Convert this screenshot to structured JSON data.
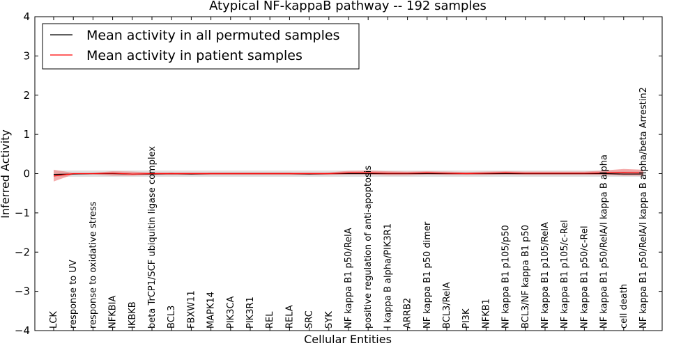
{
  "chart_data": {
    "type": "line",
    "title": "Atypical NF-kappaB pathway -- 192 samples",
    "xlabel": "Cellular Entities",
    "ylabel": "Inferred Activity",
    "ylim": [
      -4,
      4
    ],
    "yticks": [
      "4",
      "3",
      "2",
      "1",
      "0",
      "−1",
      "−2",
      "−3",
      "−4"
    ],
    "categories": [
      "LCK",
      "response to UV",
      "response to oxidative stress",
      "NFKBIA",
      "IKBKB",
      "beta TrCP1/SCF ubiquitin ligase complex",
      "BCL3",
      "FBXW11",
      "MAPK14",
      "PIK3CA",
      "PIK3R1",
      "REL",
      "RELA",
      "SRC",
      "SYK",
      "NF kappa B1 p50/RelA",
      "positive regulation of anti-apoptosis",
      "I kappa B alpha/PIK3R1",
      "ARRB2",
      "NF kappa B1 p50 dimer",
      "BCL3/RelA",
      "PI3K",
      "NFKB1",
      "NF kappa B1 p105/p50",
      "BCL3/NF kappa B1 p50",
      "NF kappa B1 p105/RelA",
      "NF kappa B1 p105/c-Rel",
      "NF kappa B1 p50/c-Rel",
      "NF kappa B1 p50/RelA/I kappa B alpha",
      "cell death",
      "NF kappa B1 p50/RelA/I kappa B alpha/beta Arrestin2"
    ],
    "series": [
      {
        "name": "Mean activity in all permuted samples",
        "color": "#000000",
        "values": [
          -0.02,
          -0.01,
          0,
          0,
          -0.01,
          -0.01,
          0,
          -0.01,
          0,
          0,
          0,
          0,
          0,
          -0.01,
          0,
          0,
          0,
          0,
          0,
          0,
          0,
          0,
          0,
          0,
          0,
          0,
          0,
          0,
          0,
          -0.01,
          -0.01
        ],
        "band_lower": [
          -0.08,
          -0.08,
          -0.08,
          -0.08,
          -0.08,
          -0.08,
          -0.08,
          -0.08,
          -0.08,
          -0.08,
          -0.08,
          -0.08,
          -0.08,
          -0.08,
          -0.08,
          -0.08,
          -0.08,
          -0.08,
          -0.08,
          -0.08,
          -0.08,
          -0.08,
          -0.08,
          -0.08,
          -0.08,
          -0.08,
          -0.08,
          -0.08,
          -0.08,
          -0.08,
          -0.08
        ],
        "band_upper": [
          0.08,
          0.08,
          0.08,
          0.08,
          0.08,
          0.08,
          0.08,
          0.08,
          0.08,
          0.08,
          0.08,
          0.08,
          0.08,
          0.08,
          0.08,
          0.08,
          0.08,
          0.08,
          0.08,
          0.08,
          0.08,
          0.08,
          0.08,
          0.08,
          0.08,
          0.08,
          0.08,
          0.08,
          0.08,
          0.08,
          0.08
        ],
        "band_color": "#cccccc"
      },
      {
        "name": "Mean activity in patient samples",
        "color": "#ff0000",
        "values": [
          -0.06,
          0,
          0,
          0.01,
          -0.01,
          0,
          0,
          0,
          0,
          0,
          0,
          0,
          0,
          0,
          0,
          0.02,
          0.02,
          0.01,
          0.01,
          0.02,
          0.01,
          0,
          0.01,
          0.02,
          0.01,
          0.01,
          0.01,
          0.01,
          0.02,
          0.03,
          0.02
        ],
        "band_lower": [
          -0.2,
          -0.02,
          -0.02,
          -0.05,
          -0.05,
          -0.03,
          -0.03,
          -0.03,
          -0.03,
          -0.03,
          -0.03,
          -0.03,
          -0.03,
          -0.03,
          -0.03,
          -0.02,
          -0.02,
          -0.04,
          -0.04,
          -0.02,
          -0.03,
          -0.03,
          -0.03,
          -0.02,
          -0.03,
          -0.03,
          -0.03,
          -0.03,
          -0.03,
          -0.05,
          -0.05
        ],
        "band_upper": [
          0.1,
          0.02,
          0.02,
          0.06,
          0.05,
          0.03,
          0.03,
          0.03,
          0.03,
          0.03,
          0.03,
          0.03,
          0.03,
          0.03,
          0.03,
          0.07,
          0.08,
          0.06,
          0.05,
          0.06,
          0.05,
          0.04,
          0.05,
          0.06,
          0.05,
          0.05,
          0.05,
          0.05,
          0.08,
          0.12,
          0.1
        ],
        "band_color": "#f08080"
      }
    ],
    "legend_position": "top-left"
  }
}
